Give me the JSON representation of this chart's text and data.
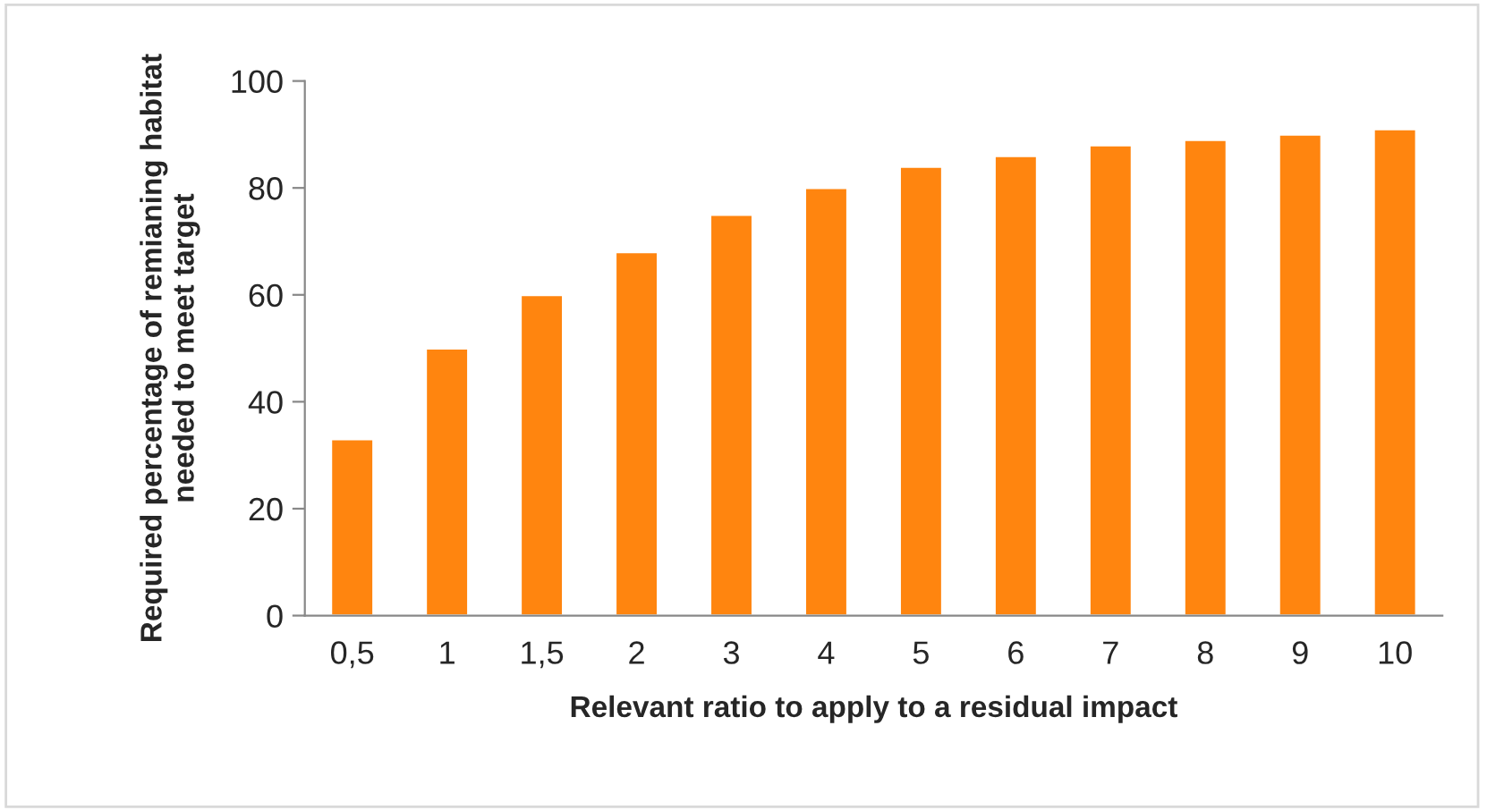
{
  "chart_data": {
    "type": "bar",
    "xlabel": "Relevant ratio to apply to a residual impact",
    "ylabel": "Required percentage of remianing habitat needed to meet target",
    "categories": [
      "0,5",
      "1",
      "1,5",
      "2",
      "3",
      "4",
      "5",
      "6",
      "7",
      "8",
      "9",
      "10"
    ],
    "values": [
      33,
      50,
      60,
      68,
      75,
      80,
      84,
      86,
      88,
      89,
      90,
      91
    ],
    "color": "#ff850f",
    "ylim": [
      0,
      100
    ],
    "yticks": [
      0,
      20,
      40,
      60,
      80,
      100
    ],
    "grid": false,
    "legend": false
  }
}
